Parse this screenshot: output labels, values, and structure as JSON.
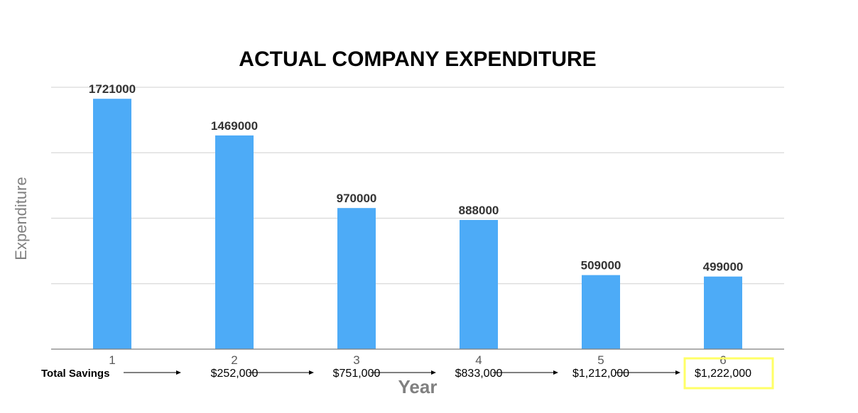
{
  "chart_data": {
    "type": "bar",
    "title": "ACTUAL COMPANY EXPENDITURE",
    "xlabel": "Year",
    "ylabel": "Expenditure",
    "categories": [
      "1",
      "2",
      "3",
      "4",
      "5",
      "6"
    ],
    "values": [
      1721000,
      1469000,
      970000,
      888000,
      509000,
      499000
    ],
    "data_labels": [
      "1721000",
      "1469000",
      "970000",
      "888000",
      "509000",
      "499000"
    ],
    "ylim": [
      0,
      1800000
    ],
    "grid": true,
    "bar_color": "#4DABF7"
  },
  "savings_row": {
    "label": "Total Savings",
    "values": [
      "$252,000",
      "$751,000",
      "$833,000",
      "$1,212,000",
      "$1,222,000"
    ],
    "highlight_index": 4,
    "highlight_color": "#FFFF66"
  }
}
